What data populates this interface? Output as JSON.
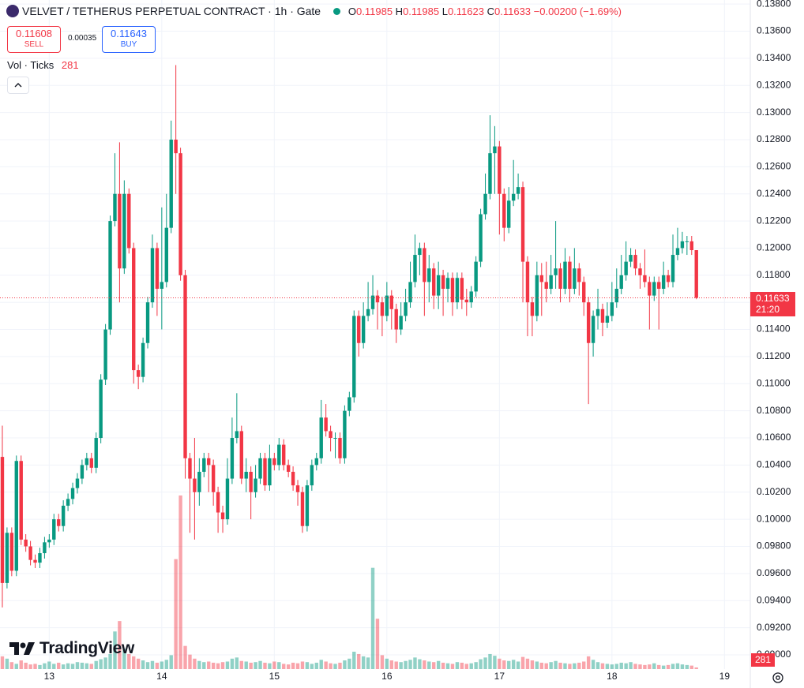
{
  "chart_data": {
    "type": "candlestick",
    "title": "VELVET / TETHERUS PERPETUAL CONTRACT · 1h · Gate",
    "ohlc_letters": [
      "O",
      "H",
      "L",
      "C"
    ],
    "change": "−0.00200 (−1.69%)",
    "sell_price": 0.11608,
    "sell_label": "SELL",
    "spread": 0.00035,
    "buy_price": 0.11643,
    "buy_label": "BUY",
    "volume_title": "Vol · Ticks",
    "countdown": "21:20",
    "logo": "TradingView",
    "up_color": "#089981",
    "down_color": "#f23645",
    "grid": true,
    "ylim": [
      0.08895,
      0.1383
    ],
    "yticks": [
      {
        "value": 0.138,
        "label": "0.13800"
      },
      {
        "value": 0.136,
        "label": "0.13600"
      },
      {
        "value": 0.134,
        "label": "0.13400"
      },
      {
        "value": 0.132,
        "label": "0.13200"
      },
      {
        "value": 0.13,
        "label": "0.13000"
      },
      {
        "value": 0.128,
        "label": "0.12800"
      },
      {
        "value": 0.126,
        "label": "0.12600"
      },
      {
        "value": 0.124,
        "label": "0.12400"
      },
      {
        "value": 0.122,
        "label": "0.12200"
      },
      {
        "value": 0.12,
        "label": "0.12000"
      },
      {
        "value": 0.118,
        "label": "0.11800"
      },
      {
        "value": 0.116,
        "label": "0.11600"
      },
      {
        "value": 0.114,
        "label": "0.11400"
      },
      {
        "value": 0.112,
        "label": "0.11200"
      },
      {
        "value": 0.11,
        "label": "0.11000"
      },
      {
        "value": 0.108,
        "label": "0.10800"
      },
      {
        "value": 0.106,
        "label": "0.10600"
      },
      {
        "value": 0.104,
        "label": "0.10400"
      },
      {
        "value": 0.102,
        "label": "0.10200"
      },
      {
        "value": 0.1,
        "label": "0.10000"
      },
      {
        "value": 0.098,
        "label": "0.09800"
      },
      {
        "value": 0.096,
        "label": "0.09600"
      },
      {
        "value": 0.094,
        "label": "0.09400"
      },
      {
        "value": 0.092,
        "label": "0.09200"
      },
      {
        "value": 0.09,
        "label": "0.09000"
      }
    ],
    "categories": [
      null,
      null,
      null,
      null,
      null,
      null,
      null,
      null,
      null,
      null,
      "13",
      null,
      null,
      null,
      null,
      null,
      null,
      null,
      null,
      null,
      null,
      null,
      null,
      null,
      null,
      null,
      null,
      null,
      null,
      null,
      null,
      null,
      null,
      null,
      "14",
      null,
      null,
      null,
      null,
      null,
      null,
      null,
      null,
      null,
      null,
      null,
      null,
      null,
      null,
      null,
      null,
      null,
      null,
      null,
      null,
      null,
      null,
      null,
      "15",
      null,
      null,
      null,
      null,
      null,
      null,
      null,
      null,
      null,
      null,
      null,
      null,
      null,
      null,
      null,
      null,
      null,
      null,
      null,
      null,
      null,
      null,
      null,
      "16",
      null,
      null,
      null,
      null,
      null,
      null,
      null,
      null,
      null,
      null,
      null,
      null,
      null,
      null,
      null,
      null,
      null,
      null,
      null,
      null,
      null,
      null,
      null,
      "17",
      null,
      null,
      null,
      null,
      null,
      null,
      null,
      null,
      null,
      null,
      null,
      null,
      null,
      null,
      null,
      null,
      null,
      null,
      null,
      null,
      null,
      null,
      null,
      "18",
      null,
      null,
      null,
      null,
      null,
      null,
      null,
      null,
      null,
      null,
      null,
      null,
      null,
      null,
      null,
      null,
      null,
      null,
      null,
      null,
      null,
      null,
      null,
      "19",
      null,
      null,
      null,
      null,
      null
    ],
    "opens": [
      0.1046,
      0.0953,
      0.099,
      0.0962,
      0.1043,
      0.0985,
      0.098,
      0.097,
      0.0968,
      0.0975,
      0.0983,
      0.0985,
      0.1,
      0.0995,
      0.101,
      0.1015,
      0.1023,
      0.103,
      0.104,
      0.1045,
      0.1038,
      0.106,
      0.1103,
      0.114,
      0.122,
      0.124,
      0.1185,
      0.124,
      0.12,
      0.111,
      0.1105,
      0.113,
      0.116,
      0.12,
      0.117,
      0.1175,
      0.1215,
      0.128,
      0.127,
      0.118,
      0.1045,
      0.103,
      0.102,
      0.1035,
      0.1045,
      0.104,
      0.102,
      0.1005,
      0.1,
      0.103,
      0.106,
      0.1065,
      0.103,
      0.1035,
      0.102,
      0.103,
      0.1045,
      0.1025,
      0.1045,
      0.104,
      0.1055,
      0.104,
      0.1035,
      0.1025,
      0.102,
      0.0995,
      0.1025,
      0.104,
      0.1045,
      0.1075,
      0.1065,
      0.106,
      0.106,
      0.1045,
      0.108,
      0.109,
      0.115,
      0.113,
      0.115,
      0.1155,
      0.1165,
      0.116,
      0.115,
      0.1165,
      0.1155,
      0.114,
      0.115,
      0.116,
      0.1175,
      0.1195,
      0.12,
      0.1175,
      0.1185,
      0.1165,
      0.118,
      0.117,
      0.1178,
      0.116,
      0.1178,
      0.1162,
      0.116,
      0.1168,
      0.119,
      0.1225,
      0.124,
      0.127,
      0.1275,
      0.124,
      0.1215,
      0.1235,
      0.124,
      0.1245,
      0.119,
      0.116,
      0.115,
      0.118,
      0.1175,
      0.117,
      0.118,
      0.1185,
      0.117,
      0.119,
      0.117,
      0.1185,
      0.1175,
      0.116,
      0.113,
      0.115,
      0.1155,
      0.1145,
      0.115,
      0.116,
      0.117,
      0.118,
      0.119,
      0.1195,
      0.1185,
      0.118,
      0.1175,
      0.1165,
      0.1175,
      0.117,
      0.118,
      0.1175,
      0.1195,
      0.12,
      0.1205,
      0.1205,
      0.11985,
      null,
      null,
      null,
      null,
      null,
      null,
      null,
      null,
      null,
      null,
      null
    ],
    "highs": [
      0.1069,
      0.0994,
      0.0994,
      0.1047,
      0.1047,
      0.0989,
      0.0984,
      0.0974,
      0.0979,
      0.0987,
      0.0989,
      0.1004,
      0.1004,
      0.1014,
      0.1019,
      0.1027,
      0.1034,
      0.1044,
      0.1049,
      0.1049,
      0.1064,
      0.1107,
      0.1144,
      0.1224,
      0.127,
      0.1278,
      0.125,
      0.1244,
      0.1204,
      0.1114,
      0.1134,
      0.1164,
      0.121,
      0.1204,
      0.123,
      0.124,
      0.1294,
      0.1335,
      0.1274,
      0.1184,
      0.1049,
      0.106,
      0.1045,
      0.1049,
      0.1049,
      0.1044,
      0.1024,
      0.101,
      0.1045,
      0.1075,
      0.1093,
      0.1069,
      0.1045,
      0.1039,
      0.104,
      0.1049,
      0.1049,
      0.1055,
      0.1049,
      0.106,
      0.1059,
      0.1044,
      0.1039,
      0.1029,
      0.1024,
      0.1029,
      0.1044,
      0.1049,
      0.1088,
      0.1085,
      0.1069,
      0.1064,
      0.1064,
      0.1084,
      0.1094,
      0.1154,
      0.1154,
      0.116,
      0.1175,
      0.118,
      0.1169,
      0.1164,
      0.1175,
      0.1169,
      0.1159,
      0.116,
      0.117,
      0.119,
      0.121,
      0.1204,
      0.1204,
      0.1195,
      0.1189,
      0.119,
      0.1184,
      0.1182,
      0.1182,
      0.1182,
      0.1182,
      0.117,
      0.1172,
      0.1194,
      0.1229,
      0.1255,
      0.1298,
      0.129,
      0.1279,
      0.1244,
      0.1245,
      0.1265,
      0.1255,
      0.1249,
      0.1194,
      0.1164,
      0.119,
      0.1189,
      0.119,
      0.1195,
      0.122,
      0.1189,
      0.12,
      0.1194,
      0.12,
      0.1189,
      0.1179,
      0.1164,
      0.1154,
      0.117,
      0.1159,
      0.116,
      0.1175,
      0.1185,
      0.1195,
      0.1205,
      0.12,
      0.1199,
      0.1189,
      0.1199,
      0.1179,
      0.1179,
      0.1179,
      0.119,
      0.1184,
      0.121,
      0.1215,
      0.1212,
      0.1209,
      0.1209,
      0.11985,
      null,
      null,
      null,
      null,
      null,
      null,
      null,
      null,
      null,
      null,
      null
    ],
    "lows": [
      0.0935,
      0.0949,
      0.0958,
      0.0958,
      0.0981,
      0.0976,
      0.0966,
      0.0964,
      0.0964,
      0.0971,
      0.0979,
      0.0981,
      0.0991,
      0.0991,
      0.1006,
      0.1011,
      0.1019,
      0.1026,
      0.1036,
      0.1034,
      0.1034,
      0.1056,
      0.1099,
      0.1136,
      0.1216,
      0.116,
      0.1181,
      0.1196,
      0.11,
      0.1096,
      0.1101,
      0.1126,
      0.1156,
      0.115,
      0.114,
      0.1171,
      0.1211,
      0.124,
      0.1176,
      0.103,
      0.099,
      0.0985,
      0.101,
      0.1031,
      0.102,
      0.101,
      0.099,
      0.099,
      0.0996,
      0.1026,
      0.1056,
      0.1026,
      0.102,
      0.1,
      0.1016,
      0.1026,
      0.1021,
      0.1021,
      0.1036,
      0.1036,
      0.1036,
      0.1031,
      0.1021,
      0.101,
      0.099,
      0.0991,
      0.1021,
      0.1036,
      0.1041,
      0.1061,
      0.105,
      0.1045,
      0.1041,
      0.1041,
      0.1076,
      0.1086,
      0.112,
      0.1126,
      0.1146,
      0.1151,
      0.114,
      0.1135,
      0.1146,
      0.114,
      0.113,
      0.1136,
      0.1146,
      0.1156,
      0.1171,
      0.118,
      0.115,
      0.116,
      0.1155,
      0.1155,
      0.115,
      0.116,
      0.115,
      0.1155,
      0.1155,
      0.115,
      0.1156,
      0.1164,
      0.1186,
      0.1221,
      0.1236,
      0.124,
      0.121,
      0.1205,
      0.1211,
      0.1231,
      0.1236,
      0.116,
      0.1135,
      0.1135,
      0.1146,
      0.115,
      0.116,
      0.1166,
      0.117,
      0.116,
      0.1166,
      0.116,
      0.1166,
      0.1165,
      0.115,
      0.1085,
      0.112,
      0.114,
      0.1135,
      0.1141,
      0.1146,
      0.1156,
      0.1166,
      0.1176,
      0.1186,
      0.118,
      0.117,
      0.1171,
      0.114,
      0.1161,
      0.114,
      0.1166,
      0.1171,
      0.1171,
      0.1191,
      0.1196,
      0.1195,
      0.1195,
      0.11623,
      null,
      null,
      null,
      null,
      null,
      null,
      null,
      null,
      null,
      null,
      null
    ],
    "closes": [
      0.0953,
      0.099,
      0.0962,
      0.1043,
      0.0985,
      0.098,
      0.097,
      0.0968,
      0.0975,
      0.0983,
      0.0985,
      0.1,
      0.0995,
      0.101,
      0.1015,
      0.1023,
      0.103,
      0.104,
      0.1045,
      0.1038,
      0.106,
      0.1103,
      0.114,
      0.122,
      0.124,
      0.1185,
      0.124,
      0.12,
      0.111,
      0.1105,
      0.113,
      0.116,
      0.12,
      0.117,
      0.1175,
      0.1215,
      0.128,
      0.127,
      0.118,
      0.1045,
      0.103,
      0.102,
      0.1035,
      0.1045,
      0.104,
      0.102,
      0.1005,
      0.1,
      0.103,
      0.106,
      0.1065,
      0.103,
      0.1035,
      0.102,
      0.103,
      0.1045,
      0.1025,
      0.1045,
      0.104,
      0.1055,
      0.104,
      0.1035,
      0.1025,
      0.102,
      0.0995,
      0.1025,
      0.104,
      0.1045,
      0.1075,
      0.1065,
      0.106,
      0.106,
      0.1045,
      0.108,
      0.109,
      0.115,
      0.113,
      0.115,
      0.1155,
      0.1165,
      0.116,
      0.115,
      0.1165,
      0.1155,
      0.114,
      0.115,
      0.116,
      0.1175,
      0.1195,
      0.12,
      0.1175,
      0.1185,
      0.1165,
      0.118,
      0.117,
      0.1178,
      0.116,
      0.1178,
      0.1162,
      0.116,
      0.1168,
      0.119,
      0.1225,
      0.124,
      0.127,
      0.1275,
      0.124,
      0.1215,
      0.1235,
      0.124,
      0.1245,
      0.119,
      0.116,
      0.115,
      0.118,
      0.1175,
      0.117,
      0.118,
      0.1185,
      0.117,
      0.119,
      0.117,
      0.1185,
      0.1175,
      0.116,
      0.113,
      0.115,
      0.1155,
      0.1145,
      0.115,
      0.116,
      0.117,
      0.118,
      0.119,
      0.1195,
      0.1185,
      0.118,
      0.1175,
      0.1165,
      0.1175,
      0.117,
      0.118,
      0.1175,
      0.1195,
      0.12,
      0.1205,
      0.1205,
      0.11985,
      0.11633,
      null,
      null,
      null,
      null,
      null,
      null,
      null,
      null,
      null,
      null,
      null
    ],
    "volumes": [
      2200,
      1800,
      1200,
      900,
      1500,
      1100,
      800,
      900,
      700,
      1000,
      1300,
      900,
      1100,
      800,
      1000,
      900,
      1200,
      1100,
      1000,
      900,
      1400,
      1700,
      2000,
      2600,
      6500,
      8300,
      3500,
      2600,
      2200,
      1800,
      1500,
      1200,
      1400,
      1100,
      1300,
      1600,
      2400,
      19000,
      30000,
      4000,
      2500,
      1800,
      1400,
      1200,
      1300,
      1100,
      1000,
      1200,
      1300,
      1800,
      2000,
      1400,
      1300,
      1100,
      1200,
      1400,
      1100,
      1000,
      1300,
      1200,
      900,
      800,
      1100,
      1000,
      1300,
      1200,
      900,
      1100,
      1600,
      1300,
      1000,
      900,
      1100,
      1500,
      1800,
      3000,
      2600,
      2200,
      2000,
      17500,
      8700,
      2400,
      1800,
      1500,
      1300,
      1200,
      1400,
      1600,
      2000,
      1700,
      1500,
      1300,
      1200,
      1400,
      1100,
      1000,
      900,
      1200,
      1100,
      900,
      1000,
      1200,
      1700,
      2000,
      2600,
      2300,
      1800,
      1500,
      1400,
      1600,
      1300,
      2100,
      1800,
      1500,
      1300,
      1100,
      1000,
      1200,
      1400,
      1100,
      1000,
      900,
      1000,
      1100,
      1300,
      2200,
      1600,
      1200,
      1000,
      900,
      800,
      900,
      1100,
      1000,
      1200,
      900,
      800,
      700,
      800,
      1000,
      700,
      600,
      700,
      900,
      1000,
      800,
      700,
      600,
      281,
      null,
      null,
      null,
      null,
      null,
      null,
      null,
      null,
      null,
      null,
      null
    ]
  }
}
